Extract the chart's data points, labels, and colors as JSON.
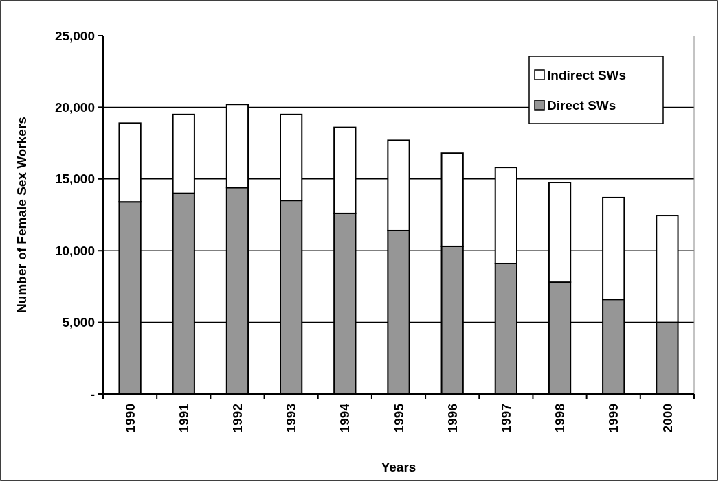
{
  "chart_data": {
    "type": "bar",
    "stacked": true,
    "xlabel": "Years",
    "ylabel": "Number of Female Sex Workers",
    "categories": [
      "1990",
      "1991",
      "1992",
      "1993",
      "1994",
      "1995",
      "1996",
      "1997",
      "1998",
      "1999",
      "2000"
    ],
    "series": [
      {
        "name": "Direct SWs",
        "color": "#969696",
        "values": [
          13400,
          14000,
          14400,
          13500,
          12600,
          11400,
          10300,
          9100,
          7800,
          6600,
          5000
        ]
      },
      {
        "name": "Indirect SWs",
        "color": "#ffffff",
        "values": [
          5500,
          5500,
          5800,
          6000,
          6000,
          6300,
          6500,
          6700,
          6950,
          7100,
          7450
        ]
      }
    ],
    "ylim": [
      0,
      25000
    ],
    "yticks": [
      {
        "value": 0,
        "label": "-"
      },
      {
        "value": 5000,
        "label": "5,000"
      },
      {
        "value": 10000,
        "label": "10,000"
      },
      {
        "value": 15000,
        "label": "15,000"
      },
      {
        "value": 20000,
        "label": "20,000"
      },
      {
        "value": 25000,
        "label": "25,000"
      }
    ],
    "grid": "y",
    "legend": "top right"
  }
}
